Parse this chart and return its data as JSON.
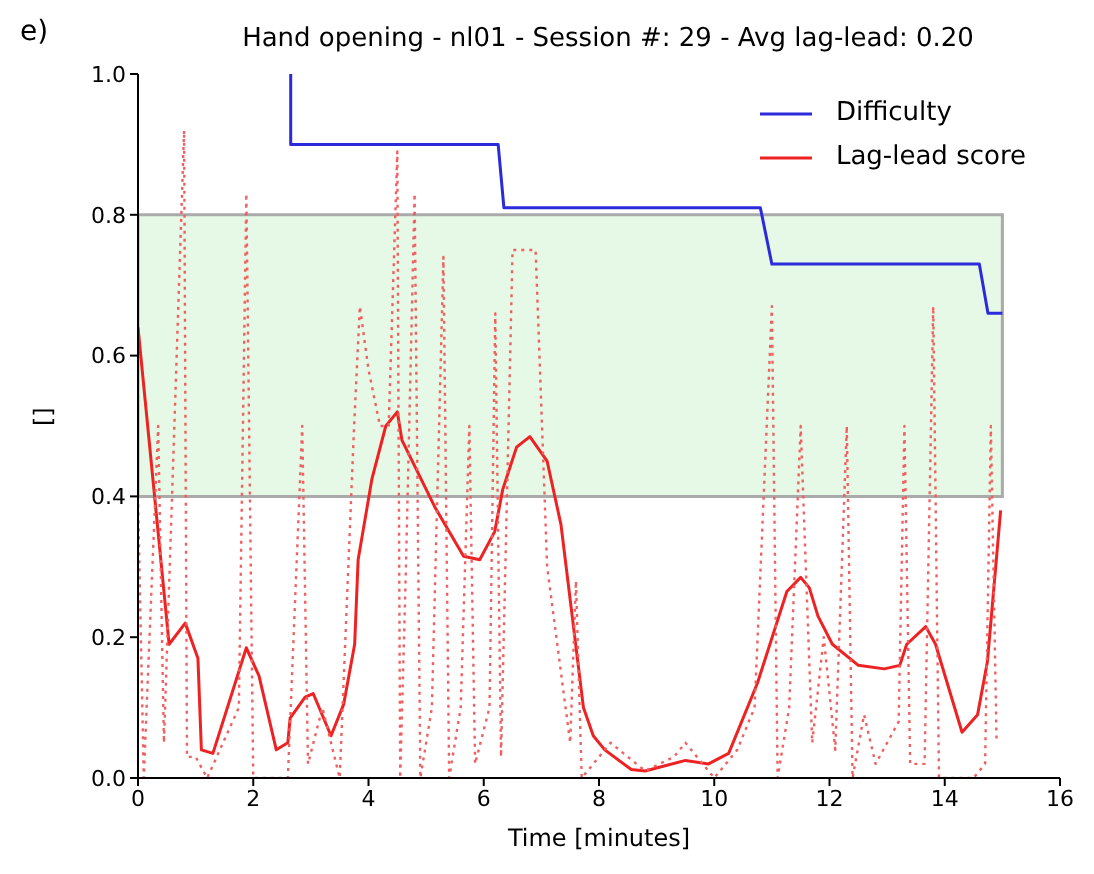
{
  "chart_data": {
    "type": "line",
    "title": "Hand opening - nl01 - Session #: 29 - Avg lag-lead: 0.20",
    "xlabel": "Time [minutes]",
    "ylabel": "[]",
    "annotations": [
      "e)"
    ],
    "xlim": [
      0,
      16
    ],
    "xticks": [
      0,
      2,
      4,
      6,
      8,
      10,
      12,
      14,
      16
    ],
    "ylim": [
      0,
      1
    ],
    "yticks": [
      {
        "value": 0,
        "label": "0.0"
      },
      {
        "value": 0.2,
        "label": "0.2"
      },
      {
        "value": 0.4,
        "label": "0.4"
      },
      {
        "value": 0.6,
        "label": "0.6"
      },
      {
        "value": 0.8,
        "label": "0.8"
      },
      {
        "value": 1,
        "label": "1.0"
      }
    ],
    "grid": false,
    "legend": "top right",
    "marker": "none",
    "bands": [
      {
        "axis": "y",
        "from": 0.4,
        "to": 0.8,
        "color": "#e6f9e6"
      }
    ],
    "series": [
      {
        "name": "Difficulty",
        "color": "#2b2bdc",
        "line_style": "solid",
        "x": [
          2.65,
          2.65,
          6.25,
          6.35,
          10.8,
          11.0,
          14.6,
          14.75,
          15.0
        ],
        "values": [
          1.0,
          0.9,
          0.9,
          0.81,
          0.81,
          0.73,
          0.73,
          0.66,
          0.66
        ]
      },
      {
        "name": "Lag-lead score",
        "color": "#ee2222",
        "line_style": "solid",
        "x": [
          0,
          0.54,
          0.82,
          1.04,
          1.1,
          1.3,
          1.88,
          2.1,
          2.4,
          2.6,
          2.64,
          2.9,
          3.04,
          3.35,
          3.57,
          3.76,
          3.82,
          4.06,
          4.3,
          4.5,
          4.58,
          5.15,
          5.65,
          5.93,
          6.19,
          6.33,
          6.57,
          6.8,
          7.1,
          7.34,
          7.73,
          7.9,
          8.1,
          8.56,
          8.8,
          9.5,
          9.9,
          10.25,
          10.75,
          11.26,
          11.5,
          11.65,
          11.8,
          12.05,
          12.5,
          12.95,
          13.22,
          13.34,
          13.67,
          13.84,
          14.3,
          14.57,
          14.74,
          14.97
        ],
        "values": [
          0.64,
          0.19,
          0.22,
          0.17,
          0.04,
          0.035,
          0.185,
          0.145,
          0.04,
          0.05,
          0.085,
          0.115,
          0.12,
          0.06,
          0.105,
          0.19,
          0.31,
          0.425,
          0.5,
          0.52,
          0.48,
          0.385,
          0.315,
          0.31,
          0.35,
          0.41,
          0.47,
          0.485,
          0.45,
          0.36,
          0.1,
          0.06,
          0.04,
          0.012,
          0.01,
          0.025,
          0.02,
          0.035,
          0.135,
          0.265,
          0.285,
          0.27,
          0.23,
          0.19,
          0.16,
          0.155,
          0.16,
          0.19,
          0.215,
          0.19,
          0.065,
          0.09,
          0.165,
          0.38
        ]
      },
      {
        "color": "#f06060",
        "line_style": "dotted",
        "x": [
          0,
          0.1,
          0.35,
          0.45,
          0.8,
          0.85,
          1.0,
          1.2,
          1.75,
          1.88,
          2.0,
          2.6,
          2.85,
          2.95,
          3.2,
          3.5,
          3.75,
          3.85,
          4.0,
          4.2,
          4.35,
          4.5,
          4.55,
          4.65,
          4.8,
          4.9,
          5.1,
          5.3,
          5.4,
          5.6,
          5.75,
          5.85,
          6.1,
          6.2,
          6.3,
          6.5,
          6.9,
          7.1,
          7.5,
          7.6,
          7.7,
          8.2,
          8.8,
          9.3,
          9.5,
          10.0,
          10.4,
          10.7,
          11.0,
          11.1,
          11.3,
          11.5,
          11.7,
          11.9,
          12.1,
          12.3,
          12.4,
          12.6,
          12.8,
          13.2,
          13.3,
          13.4,
          13.65,
          13.8,
          13.9,
          14.1,
          14.5,
          14.7,
          14.8,
          14.9
        ],
        "values": [
          0.4,
          0.0,
          0.5,
          0.05,
          0.92,
          0.03,
          0.03,
          0.0,
          0.1,
          0.83,
          0.0,
          0.0,
          0.5,
          0.02,
          0.1,
          0.0,
          0.5,
          0.67,
          0.58,
          0.5,
          0.5,
          0.89,
          0.0,
          0.3,
          0.83,
          0.0,
          0.1,
          0.74,
          0.0,
          0.1,
          0.5,
          0.02,
          0.1,
          0.66,
          0.03,
          0.75,
          0.75,
          0.3,
          0.05,
          0.28,
          0.0,
          0.05,
          0.01,
          0.03,
          0.05,
          0.0,
          0.04,
          0.1,
          0.67,
          0.0,
          0.1,
          0.5,
          0.05,
          0.2,
          0.04,
          0.5,
          0.0,
          0.09,
          0.02,
          0.08,
          0.5,
          0.02,
          0.02,
          0.67,
          0.0,
          0.0,
          0.0,
          0.02,
          0.5,
          0.05
        ]
      }
    ]
  }
}
